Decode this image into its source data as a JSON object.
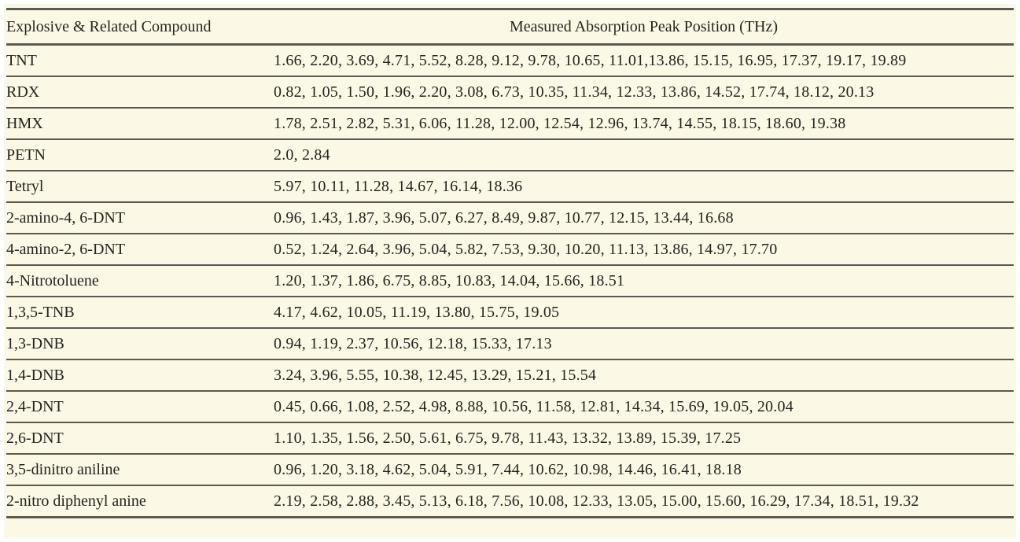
{
  "page": {
    "background": "#ffffff",
    "panel_background": "#fbf8e5",
    "rule_color": "#5a5a50",
    "text_color": "#24241f"
  },
  "table": {
    "columns": [
      "Explosive & Related Compound",
      "Measured Absorption Peak Position (THz)"
    ],
    "rows": [
      {
        "compound": "TNT",
        "peaks": "1.66, 2.20, 3.69, 4.71, 5.52, 8.28, 9.12, 9.78, 10.65, 11.01,13.86, 15.15, 16.95, 17.37, 19.17, 19.89"
      },
      {
        "compound": "RDX",
        "peaks": "0.82, 1.05, 1.50, 1.96, 2.20, 3.08, 6.73, 10.35, 11.34, 12.33, 13.86, 14.52, 17.74, 18.12, 20.13"
      },
      {
        "compound": "HMX",
        "peaks": "1.78, 2.51, 2.82, 5.31, 6.06, 11.28, 12.00, 12.54, 12.96, 13.74, 14.55, 18.15, 18.60, 19.38"
      },
      {
        "compound": "PETN",
        "peaks": "2.0, 2.84"
      },
      {
        "compound": "Tetryl",
        "peaks": "5.97, 10.11, 11.28, 14.67, 16.14, 18.36"
      },
      {
        "compound": "2-amino-4, 6-DNT",
        "peaks": "0.96, 1.43, 1.87, 3.96, 5.07, 6.27, 8.49, 9.87, 10.77, 12.15, 13.44, 16.68"
      },
      {
        "compound": "4-amino-2, 6-DNT",
        "peaks": "0.52, 1.24, 2.64, 3.96, 5.04, 5.82, 7.53, 9.30, 10.20, 11.13, 13.86, 14.97, 17.70"
      },
      {
        "compound": "4-Nitrotoluene",
        "peaks": "1.20, 1.37, 1.86, 6.75, 8.85, 10.83, 14.04, 15.66, 18.51"
      },
      {
        "compound": "1,3,5-TNB",
        "peaks": "4.17, 4.62, 10.05, 11.19, 13.80, 15.75, 19.05"
      },
      {
        "compound": "1,3-DNB",
        "peaks": "0.94, 1.19, 2.37, 10.56, 12.18, 15.33, 17.13"
      },
      {
        "compound": "1,4-DNB",
        "peaks": "3.24, 3.96, 5.55, 10.38, 12.45, 13.29, 15.21, 15.54"
      },
      {
        "compound": "2,4-DNT",
        "peaks": "0.45, 0.66, 1.08, 2.52, 4.98, 8.88, 10.56, 11.58, 12.81, 14.34, 15.69, 19.05, 20.04"
      },
      {
        "compound": "2,6-DNT",
        "peaks": "1.10, 1.35, 1.56, 2.50, 5.61, 6.75, 9.78, 11.43, 13.32, 13.89, 15.39, 17.25"
      },
      {
        "compound": "3,5-dinitro aniline",
        "peaks": "0.96, 1.20, 3.18, 4.62, 5.04, 5.91, 7.44, 10.62, 10.98, 14.46, 16.41, 18.18"
      },
      {
        "compound": "2-nitro diphenyl anine",
        "peaks": "2.19, 2.58, 2.88, 3.45, 5.13, 6.18, 7.56, 10.08, 12.33, 13.05, 15.00, 15.60, 16.29, 17.34, 18.51, 19.32"
      }
    ]
  }
}
